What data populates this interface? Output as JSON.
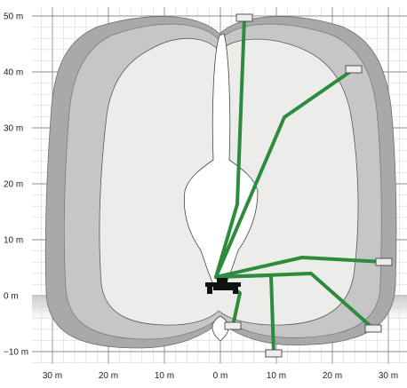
{
  "diagram": {
    "type": "working-range-diagram",
    "y_axis_labels": [
      "50 m",
      "40 m",
      "30 m",
      "20 m",
      "10 m",
      "0 m",
      "−10 m"
    ],
    "x_axis_labels": [
      "30 m",
      "20 m",
      "10 m",
      "0 m",
      "10 m",
      "20 m",
      "30 m"
    ],
    "colors": {
      "grid_minor": "#d9d9d9",
      "grid_major": "#8c8c8c",
      "outer_envelope": "#a9a9a9",
      "mid_envelope": "#c6c6c6",
      "inner_envelope": "#ececea",
      "boom": "#2e8b3e",
      "boom_dark": "#1f6b2c",
      "vehicle": "#111111",
      "ground_band": "#c8c8c8"
    }
  }
}
